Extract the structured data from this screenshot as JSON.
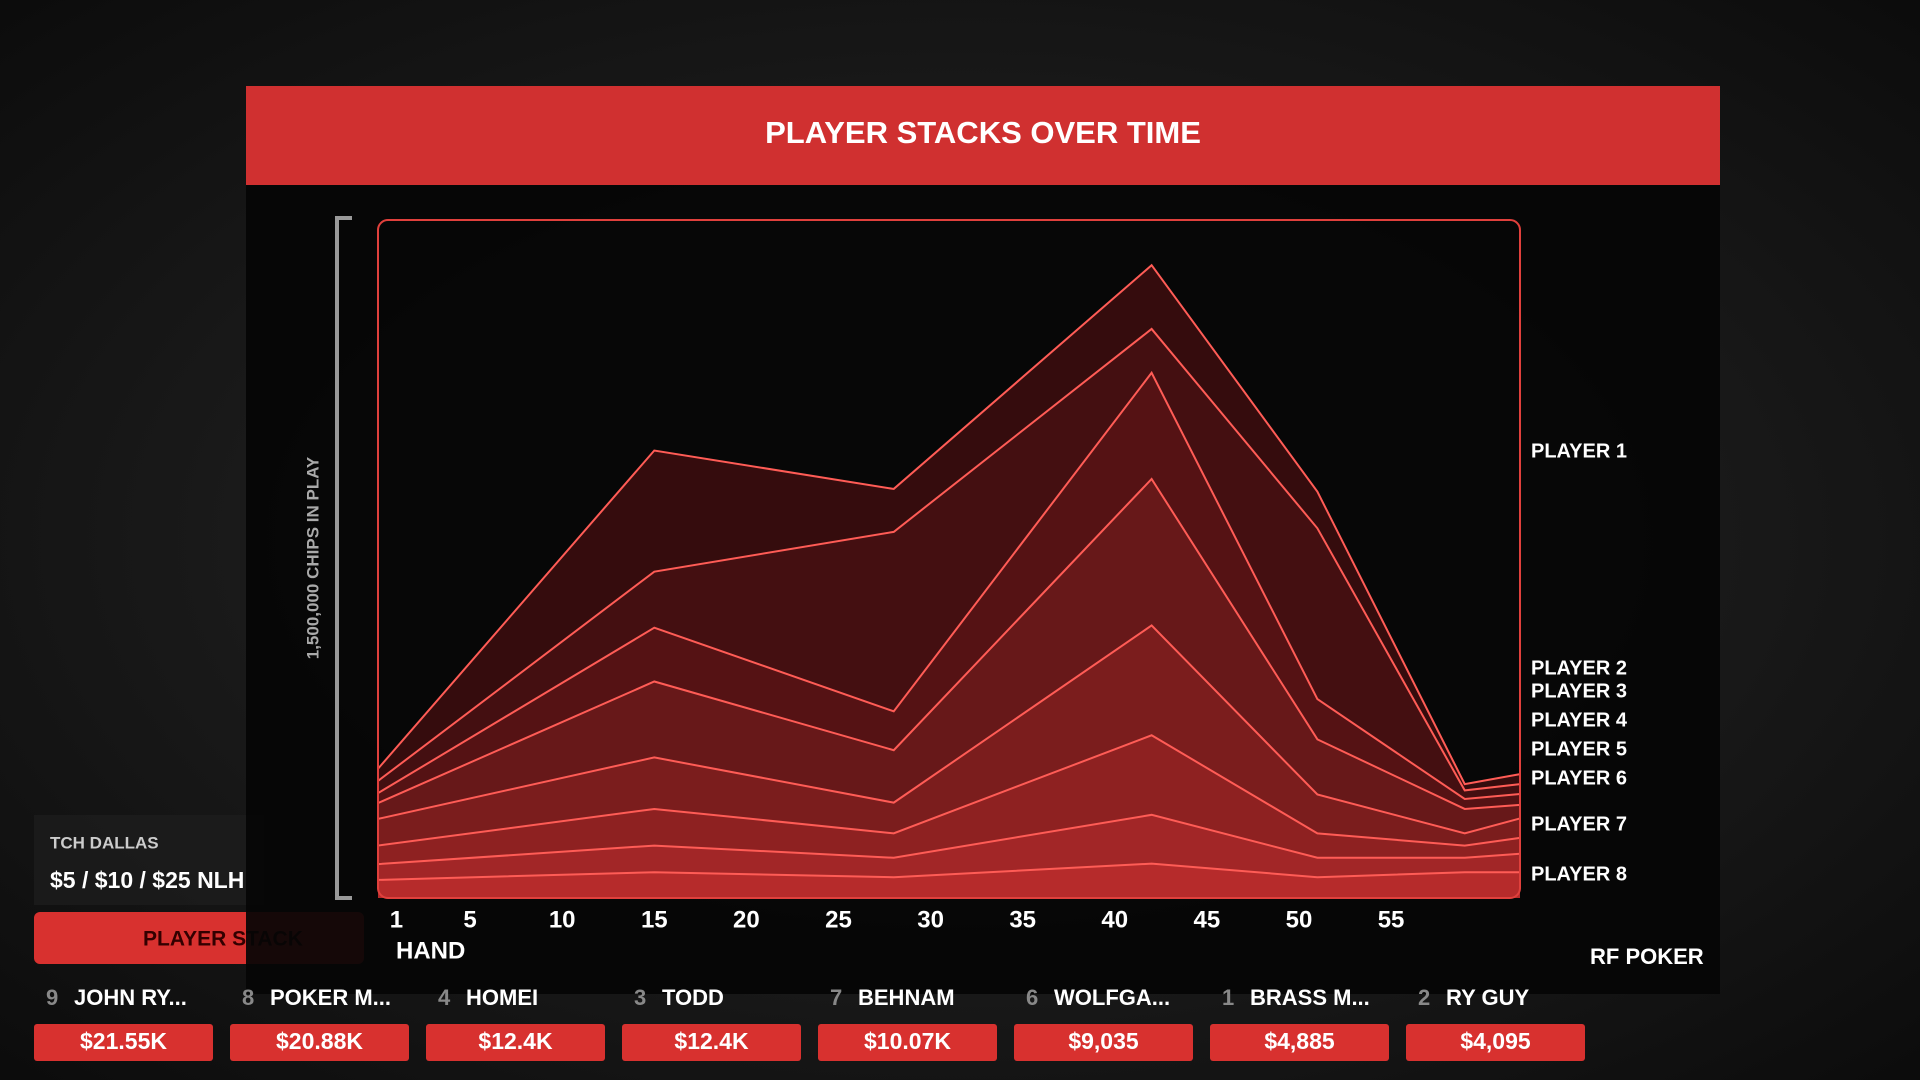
{
  "chart_data": {
    "type": "stacked-area",
    "title": "PLAYER STACKS OVER TIME",
    "xlabel": "HAND",
    "ylabel": "1,500,000 CHIPS IN PLAY",
    "x": [
      0,
      15,
      28,
      42,
      51,
      59,
      62
    ],
    "xlim": [
      0,
      62
    ],
    "xticks": [
      1,
      5,
      10,
      15,
      20,
      25,
      30,
      35,
      40,
      45,
      50,
      55
    ],
    "ylim": [
      0,
      1500000
    ],
    "series": [
      {
        "name": "PLAYER 1",
        "color": "#3a0d0e",
        "values": [
          27000,
          268000,
          95000,
          141000,
          81000,
          14000,
          22000
        ]
      },
      {
        "name": "PLAYER 2",
        "color": "#4a1012",
        "values": [
          27000,
          124000,
          397000,
          97000,
          378000,
          19000,
          22000
        ]
      },
      {
        "name": "PLAYER 3",
        "color": "#5c1416",
        "values": [
          22000,
          119000,
          86000,
          235000,
          89000,
          22000,
          24000
        ]
      },
      {
        "name": "PLAYER 4",
        "color": "#701a1b",
        "values": [
          35000,
          168000,
          116000,
          324000,
          122000,
          54000,
          30000
        ]
      },
      {
        "name": "PLAYER 5",
        "color": "#851f20",
        "values": [
          59000,
          114000,
          68000,
          243000,
          86000,
          27000,
          43000
        ]
      },
      {
        "name": "PLAYER 6",
        "color": "#9a2424",
        "values": [
          41000,
          81000,
          54000,
          176000,
          54000,
          27000,
          35000
        ]
      },
      {
        "name": "PLAYER 7",
        "color": "#b0292a",
        "values": [
          35000,
          59000,
          43000,
          108000,
          43000,
          32000,
          41000
        ]
      },
      {
        "name": "PLAYER 8",
        "color": "#c52f2f",
        "values": [
          40000,
          57000,
          46000,
          76000,
          46000,
          57000,
          57000
        ]
      }
    ]
  },
  "overlay": {
    "event": "TCH DALLAS",
    "stakes": "$5 / $10 / $25 NLH",
    "tab": "PLAYER STACK",
    "logo": "RF POKER",
    "players": [
      {
        "seat": "9",
        "name": "JOHN RY...",
        "stack": "$21.55K"
      },
      {
        "seat": "8",
        "name": "POKER M...",
        "stack": "$20.88K"
      },
      {
        "seat": "4",
        "name": "HOMEI",
        "stack": "$12.4K"
      },
      {
        "seat": "3",
        "name": "TODD",
        "stack": "$12.4K"
      },
      {
        "seat": "7",
        "name": "BEHNAM",
        "stack": "$10.07K"
      },
      {
        "seat": "6",
        "name": "WOLFGA...",
        "stack": "$9,035"
      },
      {
        "seat": "1",
        "name": "BRASS M...",
        "stack": "$4,885"
      },
      {
        "seat": "2",
        "name": "RY GUY",
        "stack": "$4,095"
      }
    ]
  }
}
